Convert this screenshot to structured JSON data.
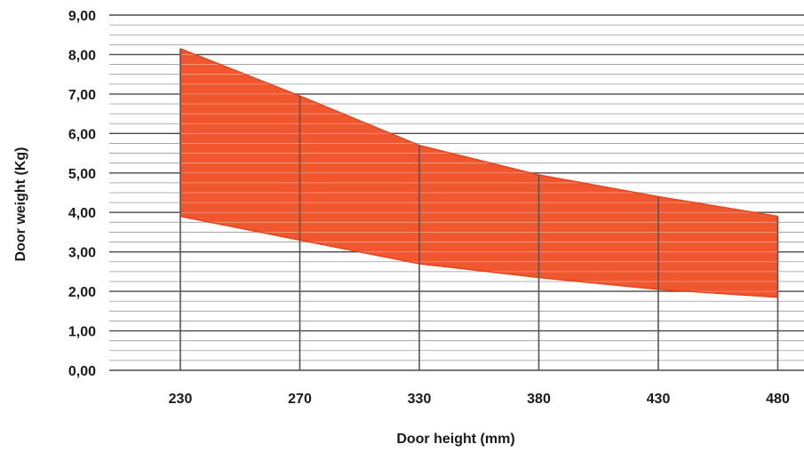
{
  "chart_data": {
    "type": "area",
    "title": "",
    "xlabel": "Door height (mm)",
    "ylabel": "Door weight (Kg)",
    "categories": [
      "230",
      "270",
      "330",
      "380",
      "430",
      "480"
    ],
    "y_ticks": [
      "0,00",
      "1,00",
      "2,00",
      "3,00",
      "4,00",
      "5,00",
      "6,00",
      "7,00",
      "8,00",
      "9,00"
    ],
    "ylim": [
      0,
      9
    ],
    "series": [
      {
        "values": [
          8.15,
          6.95,
          5.7,
          4.95,
          4.4,
          3.9
        ]
      },
      {
        "values": [
          3.9,
          3.3,
          2.7,
          2.35,
          2.05,
          1.85
        ]
      }
    ],
    "fill_color": "#f04e23",
    "grid": true,
    "minor_gridlines_per_unit": 4,
    "legend": "none"
  }
}
